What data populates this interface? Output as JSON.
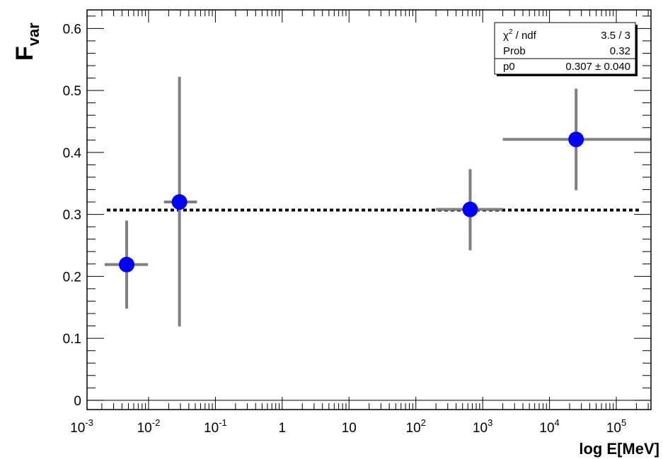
{
  "chart_data": {
    "type": "scatter",
    "title": "",
    "ylabel_main": "F",
    "ylabel_sub": "var",
    "xlabel": "log E[MeV]",
    "xscale": "log",
    "xlim": [
      0.0012,
      330000
    ],
    "ylim": [
      -0.015,
      0.63
    ],
    "x_tick_labels": [
      {
        "value": 0.001,
        "base": "10",
        "exp": "-3"
      },
      {
        "value": 0.01,
        "base": "10",
        "exp": "-2"
      },
      {
        "value": 0.1,
        "base": "10",
        "exp": "-1"
      },
      {
        "value": 1,
        "base": "1",
        "exp": ""
      },
      {
        "value": 10,
        "base": "10",
        "exp": ""
      },
      {
        "value": 100,
        "base": "10",
        "exp": "2"
      },
      {
        "value": 1000,
        "base": "10",
        "exp": "3"
      },
      {
        "value": 10000,
        "base": "10",
        "exp": "4"
      },
      {
        "value": 100000,
        "base": "10",
        "exp": "5"
      }
    ],
    "y_ticks": [
      0,
      0.1,
      0.2,
      0.3,
      0.4,
      0.5,
      0.6
    ],
    "y_tick_labels": [
      "0",
      "0.1",
      "0.2",
      "0.3",
      "0.4",
      "0.5",
      "0.6"
    ],
    "points": [
      {
        "x": 0.0047,
        "y": 0.219,
        "xlow": 0.0022,
        "xhigh": 0.0098,
        "ylow": 0.148,
        "yhigh": 0.29
      },
      {
        "x": 0.029,
        "y": 0.32,
        "xlow": 0.017,
        "xhigh": 0.053,
        "ylow": 0.119,
        "yhigh": 0.522
      },
      {
        "x": 650,
        "y": 0.308,
        "xlow": 200,
        "xhigh": 2000,
        "ylow": 0.242,
        "yhigh": 0.373
      },
      {
        "x": 25000,
        "y": 0.421,
        "xlow": 2000,
        "xhigh": 330000,
        "ylow": 0.339,
        "yhigh": 0.503
      }
    ],
    "fit": {
      "value": 0.307,
      "style": "dotted",
      "color": "#000000"
    },
    "marker_color": "#0000ff",
    "error_color": "#7f7f7f",
    "grid": false,
    "legend_position": "top-right",
    "stats_box": {
      "rows": [
        {
          "label_base": "χ",
          "label_exp": "2",
          "label_rest": " / ndf",
          "value": "3.5 / 3"
        },
        {
          "label_base": "Prob",
          "label_exp": "",
          "label_rest": "",
          "value": "0.32"
        },
        {
          "label_base": "p0",
          "label_exp": "",
          "label_rest": "",
          "value": "0.307 ± 0.040"
        }
      ]
    }
  }
}
